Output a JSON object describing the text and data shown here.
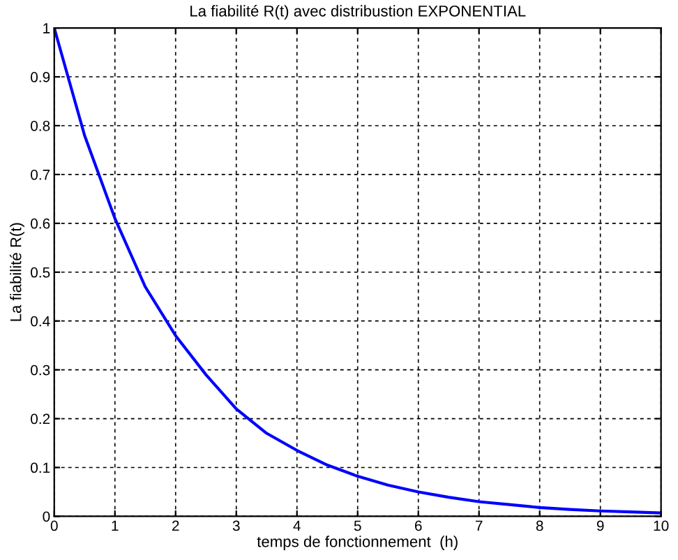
{
  "chart_data": {
    "type": "line",
    "title": "La fiabilité R(t) avec distribustion EXPONENTIAL",
    "xlabel": "temps de fonctionnement  (h)",
    "ylabel": "La fiabilité R(t)",
    "x": [
      0,
      0.5,
      1,
      1.5,
      2,
      2.5,
      3,
      3.5,
      4,
      4.5,
      5,
      5.5,
      6,
      6.5,
      7,
      7.5,
      8,
      8.5,
      9,
      9.5,
      10
    ],
    "series": [
      {
        "color": "#0000ff",
        "values": [
          1,
          0.78,
          0.61,
          0.47,
          0.37,
          0.29,
          0.22,
          0.17,
          0.135,
          0.105,
          0.082,
          0.064,
          0.05,
          0.039,
          0.03,
          0.024,
          0.018,
          0.014,
          0.011,
          0.009,
          0.007
        ]
      }
    ],
    "xlim": [
      0,
      10
    ],
    "ylim": [
      0,
      1
    ],
    "xticks": [
      0,
      1,
      2,
      3,
      4,
      5,
      6,
      7,
      8,
      9,
      10
    ],
    "yticks": [
      0,
      0.1,
      0.2,
      0.3,
      0.4,
      0.5,
      0.6,
      0.7,
      0.8,
      0.9,
      1
    ],
    "grid": true,
    "marker": "none",
    "line_style": "solid"
  }
}
